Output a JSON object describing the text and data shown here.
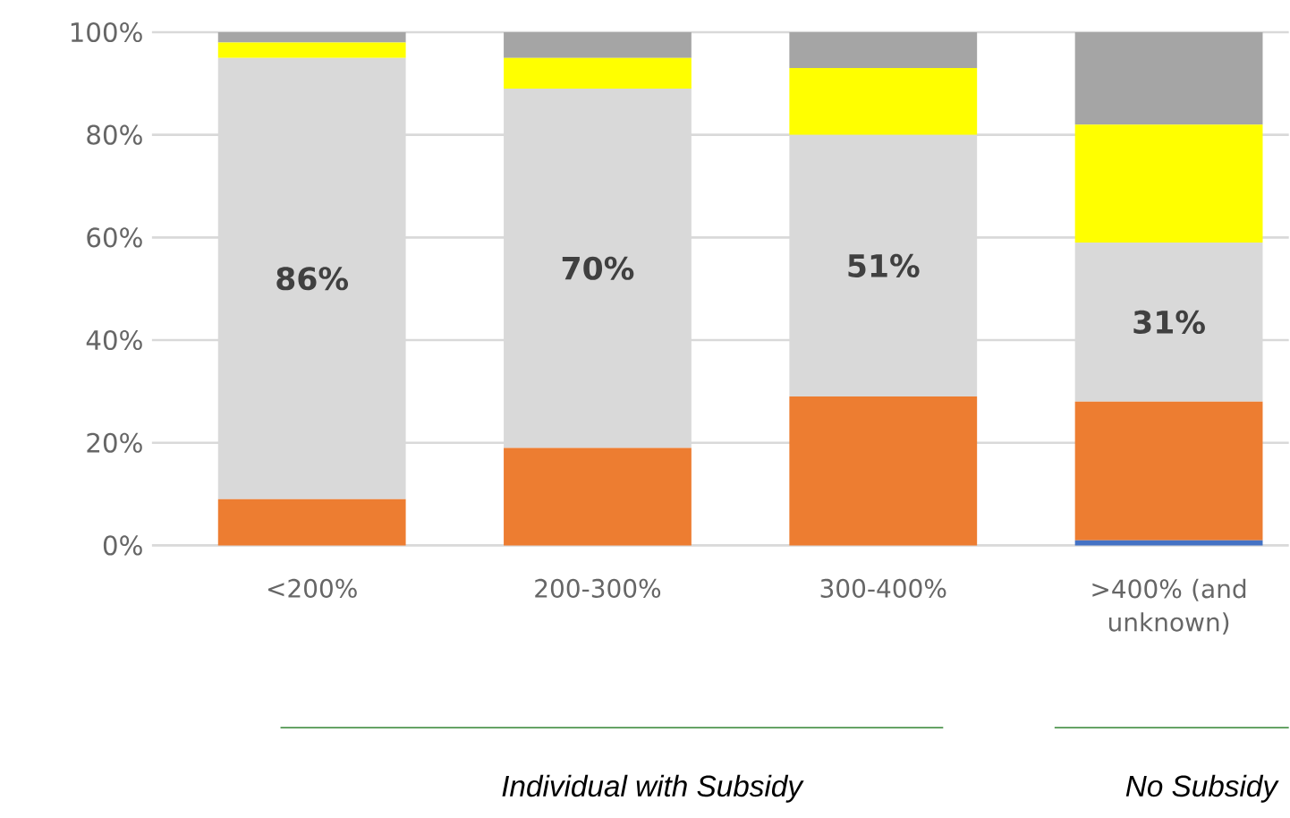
{
  "chart_data": {
    "type": "bar",
    "stacked": true,
    "categories": [
      "<200%",
      "200-300%",
      "300-400%",
      ">400% (and unknown)"
    ],
    "series": [
      {
        "color": "#4472c4",
        "values": [
          null,
          null,
          null,
          1
        ]
      },
      {
        "color": "#ed7d31",
        "values": [
          9,
          19,
          29,
          27
        ]
      },
      {
        "color": "#d9d9d9",
        "values": [
          86,
          70,
          51,
          31
        ],
        "value_labels": [
          "86%",
          "70%",
          "51%",
          "31%"
        ]
      },
      {
        "color": "#ffff00",
        "values": [
          3,
          6,
          13,
          23
        ]
      },
      {
        "color": "#a5a5a5",
        "values": [
          2,
          5,
          7,
          18
        ]
      }
    ],
    "ylim": [
      0,
      100
    ],
    "yticks": [
      {
        "value": 0,
        "label": "0%"
      },
      {
        "value": 20,
        "label": "20%"
      },
      {
        "value": 40,
        "label": "40%"
      },
      {
        "value": 60,
        "label": "60%"
      },
      {
        "value": 80,
        "label": "80%"
      },
      {
        "value": 100,
        "label": "100%"
      }
    ],
    "grid": "y",
    "annotations": [
      "Individual with Subsidy",
      "No Subsidy"
    ]
  }
}
